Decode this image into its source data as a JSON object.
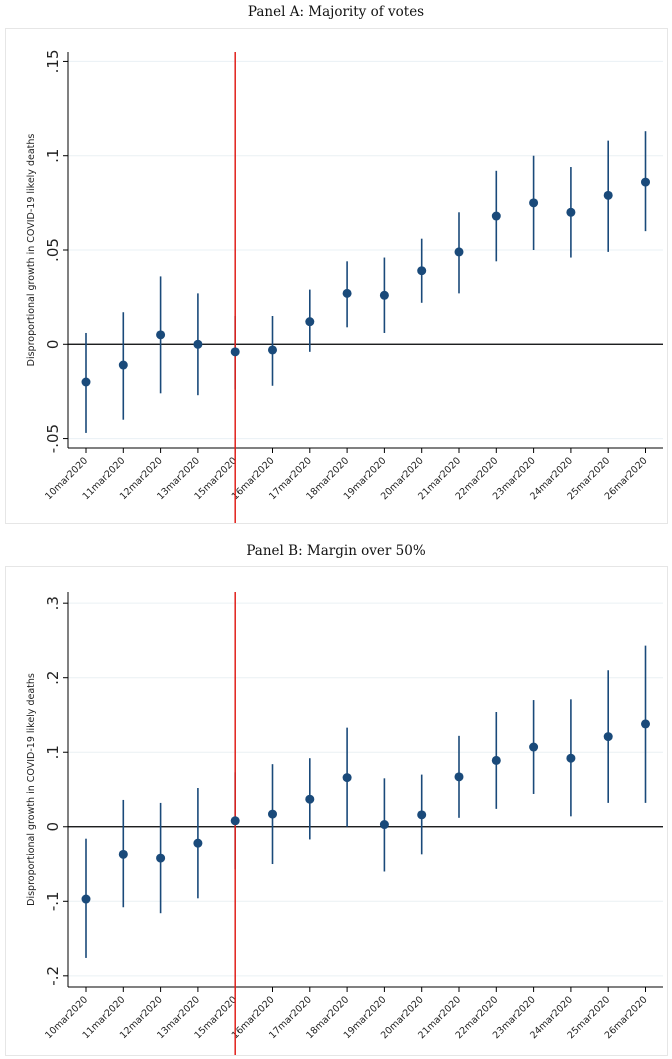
{
  "chart_data": [
    {
      "type": "scatter",
      "title": "Panel A: Majority of votes",
      "ylabel": "Disproportional growth in COVID-19 likely deaths",
      "xlabel": "",
      "categories": [
        "10mar2020",
        "11mar2020",
        "12mar2020",
        "13mar2020",
        "15mar2020",
        "16mar2020",
        "17mar2020",
        "18mar2020",
        "19mar2020",
        "20mar2020",
        "21mar2020",
        "22mar2020",
        "23mar2020",
        "24mar2020",
        "25mar2020",
        "26mar2020"
      ],
      "values": [
        -0.02,
        -0.011,
        0.005,
        0.0,
        -0.004,
        -0.003,
        0.012,
        0.027,
        0.026,
        0.039,
        0.049,
        0.068,
        0.075,
        0.07,
        0.079,
        0.086
      ],
      "ci_lower": [
        -0.047,
        -0.04,
        -0.026,
        -0.027,
        -0.024,
        -0.022,
        -0.004,
        0.009,
        0.006,
        0.022,
        0.027,
        0.044,
        0.05,
        0.046,
        0.049,
        0.06
      ],
      "ci_upper": [
        0.006,
        0.017,
        0.036,
        0.027,
        0.015,
        0.015,
        0.029,
        0.044,
        0.046,
        0.056,
        0.07,
        0.092,
        0.1,
        0.094,
        0.108,
        0.113
      ],
      "ylim": [
        -0.055,
        0.155
      ],
      "yticks": [
        -0.05,
        0,
        0.05,
        0.1,
        0.15
      ],
      "ytick_labels": [
        "-.05",
        "0",
        ".05",
        ".1",
        ".15"
      ],
      "event_line_category": "15mar2020",
      "zero_line": true,
      "grid": true,
      "colors": {
        "marker": "#1a4a7a",
        "ci": "#1a4a7a",
        "event_line": "#e0201b",
        "zero_line": "#000000",
        "grid": "#eaf0f4"
      }
    },
    {
      "type": "scatter",
      "title": "Panel B: Margin over 50%",
      "ylabel": "Disproportional growth in COVID-19 likely deaths",
      "xlabel": "",
      "categories": [
        "10mar2020",
        "11mar2020",
        "12mar2020",
        "13mar2020",
        "15mar2020",
        "16mar2020",
        "17mar2020",
        "18mar2020",
        "19mar2020",
        "20mar2020",
        "21mar2020",
        "22mar2020",
        "23mar2020",
        "24mar2020",
        "25mar2020",
        "26mar2020"
      ],
      "values": [
        -0.097,
        -0.037,
        -0.042,
        -0.022,
        0.008,
        0.017,
        0.037,
        0.066,
        0.003,
        0.016,
        0.067,
        0.089,
        0.107,
        0.092,
        0.121,
        0.138
      ],
      "ci_lower": [
        -0.176,
        -0.108,
        -0.116,
        -0.096,
        -0.057,
        -0.05,
        -0.017,
        0.0,
        -0.06,
        -0.037,
        0.012,
        0.024,
        0.044,
        0.014,
        0.032,
        0.032
      ],
      "ci_upper": [
        -0.016,
        0.036,
        0.032,
        0.052,
        0.073,
        0.084,
        0.092,
        0.133,
        0.065,
        0.07,
        0.122,
        0.154,
        0.17,
        0.171,
        0.21,
        0.243
      ],
      "ylim": [
        -0.215,
        0.315
      ],
      "yticks": [
        -0.2,
        -0.1,
        0,
        0.1,
        0.2,
        0.3
      ],
      "ytick_labels": [
        "-.2",
        "-.1",
        "0",
        ".1",
        ".2",
        ".3"
      ],
      "event_line_category": "15mar2020",
      "zero_line": true,
      "grid": true,
      "colors": {
        "marker": "#1a4a7a",
        "ci": "#1a4a7a",
        "event_line": "#e0201b",
        "zero_line": "#000000",
        "grid": "#eaf0f4"
      }
    }
  ]
}
